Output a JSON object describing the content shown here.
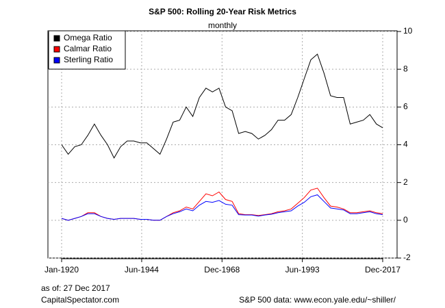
{
  "chart_data": {
    "type": "line",
    "title": "S&P 500: Rolling 20-Year Risk Metrics",
    "subtitle": "monthly",
    "notes": [
      "as of: 27 Dec 2017",
      "CapitalSpectator.com",
      "S&P 500 data: www.econ.yale.edu/~shiller/"
    ],
    "x": [
      "Jan-1920",
      "Jan-1922",
      "Jan-1924",
      "Jan-1926",
      "Jan-1928",
      "Jan-1930",
      "Jan-1932",
      "Jan-1934",
      "Jan-1936",
      "Jan-1938",
      "Jan-1940",
      "Jan-1942",
      "Jan-1944",
      "Jan-1946",
      "Jan-1948",
      "Jan-1950",
      "Jan-1952",
      "Jan-1954",
      "Jan-1956",
      "Jan-1958",
      "Jan-1960",
      "Jan-1962",
      "Jan-1964",
      "Jan-1966",
      "Jan-1968",
      "Jan-1970",
      "Jan-1972",
      "Jan-1974",
      "Jan-1976",
      "Jan-1978",
      "Jan-1980",
      "Jan-1982",
      "Jan-1984",
      "Jan-1986",
      "Jan-1988",
      "Jan-1990",
      "Jan-1992",
      "Jan-1994",
      "Jan-1996",
      "Jan-1998",
      "Jan-2000",
      "Jan-2002",
      "Jan-2004",
      "Jan-2006",
      "Jan-2008",
      "Jan-2010",
      "Jan-2012",
      "Jan-2014",
      "Jan-2016",
      "Dec-2017"
    ],
    "series": [
      {
        "name": "Omega Ratio",
        "color": "#000000",
        "values": [
          4.0,
          3.5,
          3.9,
          4.0,
          4.5,
          5.1,
          4.5,
          4.0,
          3.3,
          3.9,
          4.2,
          4.2,
          4.1,
          4.1,
          3.8,
          3.5,
          4.3,
          5.2,
          5.3,
          6.0,
          5.5,
          6.5,
          7.0,
          6.8,
          7.0,
          6.0,
          5.8,
          4.6,
          4.7,
          4.6,
          4.3,
          4.5,
          4.8,
          5.3,
          5.3,
          5.6,
          6.5,
          7.5,
          8.5,
          8.8,
          7.8,
          6.6,
          6.5,
          6.5,
          5.1,
          5.2,
          5.3,
          5.6,
          5.1,
          4.9
        ]
      },
      {
        "name": "Calmar Ratio",
        "color": "#ff0000",
        "values": [
          0.1,
          0.0,
          0.1,
          0.2,
          0.4,
          0.4,
          0.2,
          0.1,
          0.05,
          0.1,
          0.1,
          0.1,
          0.05,
          0.05,
          0.0,
          0.0,
          0.2,
          0.4,
          0.5,
          0.7,
          0.6,
          1.0,
          1.4,
          1.3,
          1.5,
          1.1,
          1.0,
          0.35,
          0.3,
          0.3,
          0.25,
          0.3,
          0.35,
          0.45,
          0.5,
          0.6,
          0.9,
          1.2,
          1.6,
          1.7,
          1.2,
          0.75,
          0.7,
          0.6,
          0.4,
          0.4,
          0.45,
          0.5,
          0.4,
          0.35
        ]
      },
      {
        "name": "Sterling Ratio",
        "color": "#0000ff",
        "values": [
          0.1,
          0.0,
          0.1,
          0.2,
          0.35,
          0.35,
          0.2,
          0.1,
          0.05,
          0.1,
          0.1,
          0.1,
          0.05,
          0.05,
          0.0,
          0.0,
          0.2,
          0.35,
          0.45,
          0.6,
          0.5,
          0.8,
          1.0,
          0.95,
          1.05,
          0.85,
          0.8,
          0.3,
          0.28,
          0.28,
          0.22,
          0.28,
          0.32,
          0.4,
          0.45,
          0.5,
          0.75,
          0.95,
          1.25,
          1.35,
          1.0,
          0.65,
          0.6,
          0.55,
          0.35,
          0.35,
          0.4,
          0.45,
          0.35,
          0.3
        ]
      }
    ],
    "xlim": [
      "Jan-1920",
      "Dec-2017"
    ],
    "xticks": [
      "Jan-1920",
      "Jun-1944",
      "Dec-1968",
      "Jun-1993",
      "Dec-2017"
    ],
    "ylim": [
      -2,
      10
    ],
    "yticks": [
      -2,
      0,
      2,
      4,
      6,
      8,
      10
    ],
    "grid": true,
    "legend": "top-left"
  }
}
